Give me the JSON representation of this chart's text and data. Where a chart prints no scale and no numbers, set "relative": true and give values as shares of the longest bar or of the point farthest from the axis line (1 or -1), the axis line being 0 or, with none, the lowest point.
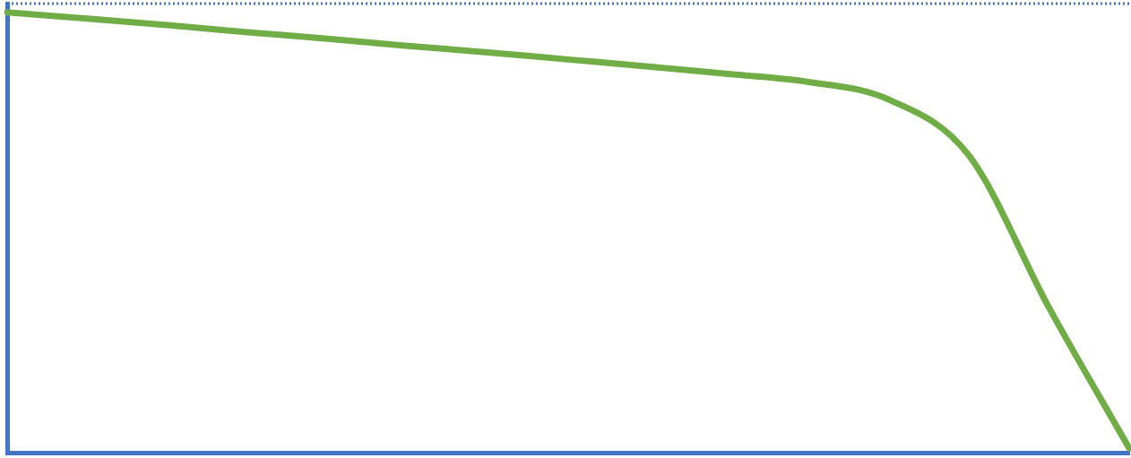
{
  "chart_data": {
    "type": "line",
    "relative": true,
    "categories": [
      null,
      null,
      null,
      null,
      null,
      null,
      null,
      null,
      null,
      null,
      null,
      null,
      null,
      null,
      null
    ],
    "series": [
      {
        "color": "#70ad47",
        "values": [
          1.0,
          0.986,
          0.971,
          0.955,
          0.94,
          0.924,
          0.909,
          0.893,
          0.877,
          0.86,
          0.842,
          0.802,
          0.675,
          0.329,
          0.01
        ]
      }
    ],
    "ref_lines": [
      {
        "axis": "y",
        "value": 1.02,
        "color": "#4472c4",
        "line_style": "dotted"
      }
    ],
    "grid": false,
    "legend": false,
    "marker": "none",
    "line_style": "solid",
    "tick_labels": false
  }
}
